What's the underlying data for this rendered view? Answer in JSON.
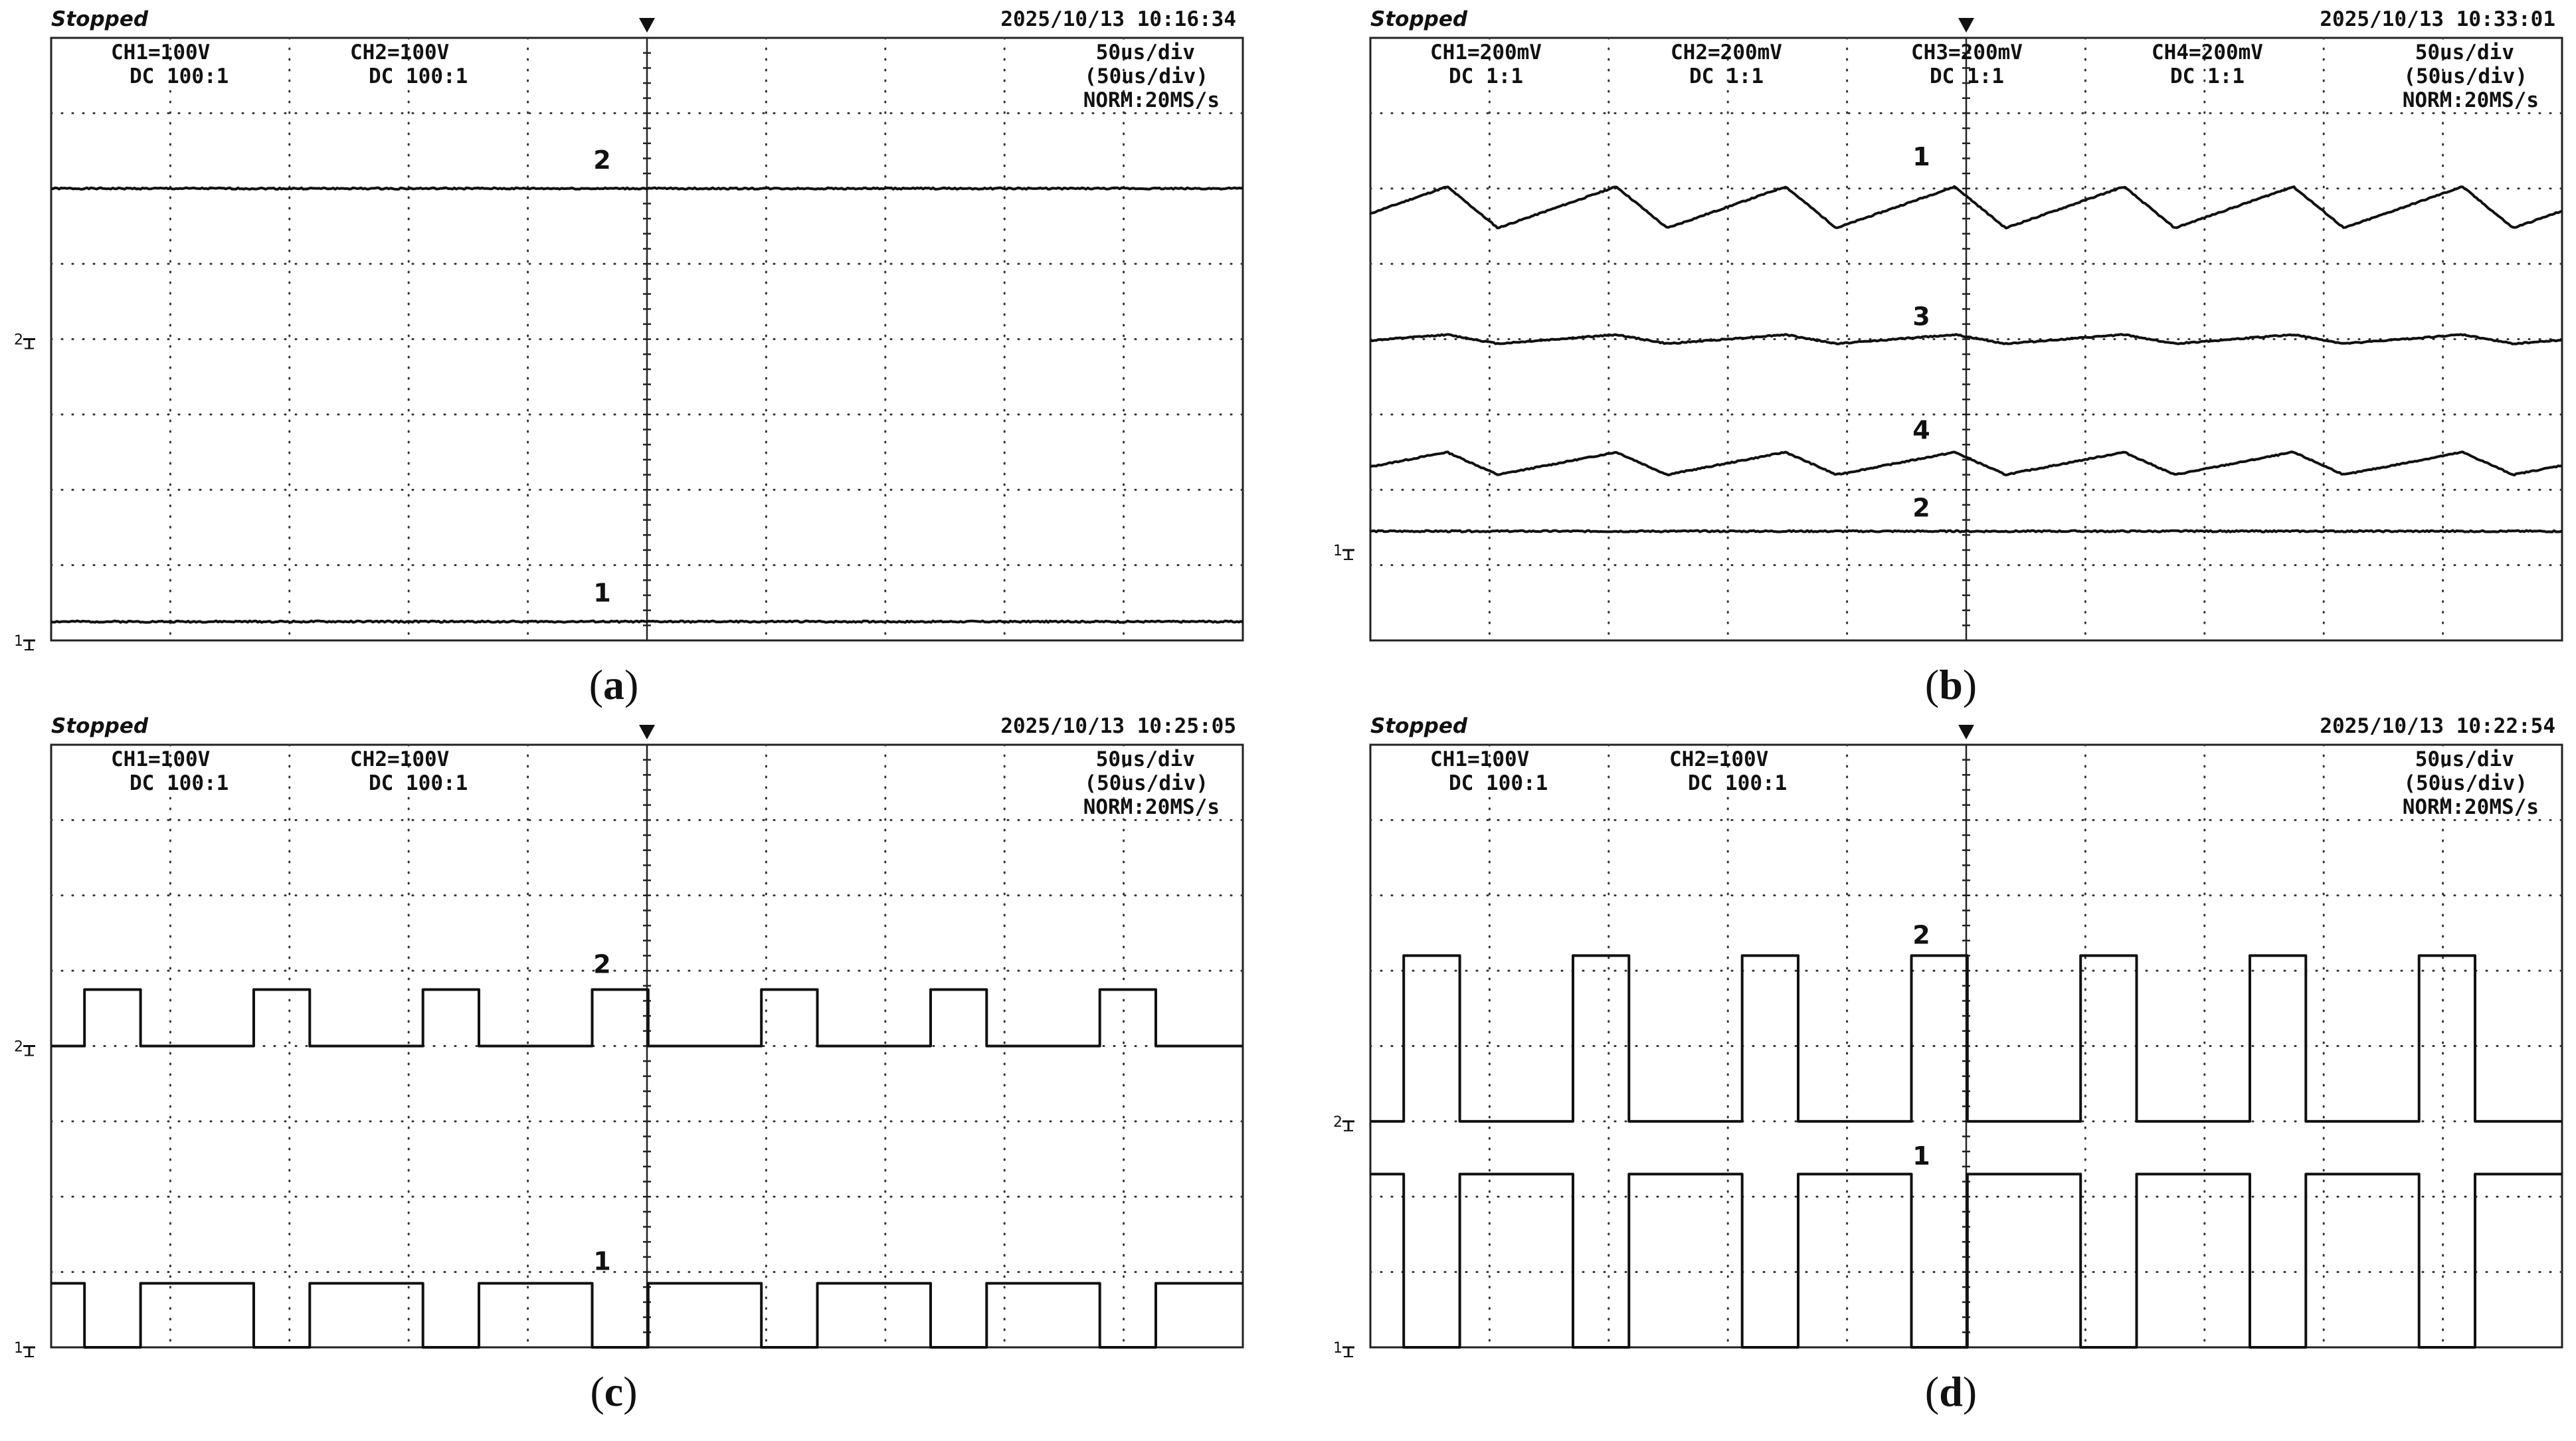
{
  "figure": {
    "panels": [
      {
        "label": "a",
        "header": {
          "status": "Stopped",
          "datetime": "2025/10/13  10:16:34",
          "channels": [
            {
              "setting": "CH1=100V",
              "coupling": "DC  100:1"
            },
            {
              "setting": "CH2=100V",
              "coupling": "DC  100:1"
            }
          ],
          "timebase": "50us/div",
          "timebase2": "(50us/div)",
          "acquisition": "NORM:20MS/s"
        }
      },
      {
        "label": "b",
        "header": {
          "status": "Stopped",
          "datetime": "2025/10/13  10:33:01",
          "channels": [
            {
              "setting": "CH1=200mV",
              "coupling": "DC  1:1"
            },
            {
              "setting": "CH2=200mV",
              "coupling": "DC  1:1"
            },
            {
              "setting": "CH3=200mV",
              "coupling": "DC  1:1"
            },
            {
              "setting": "CH4=200mV",
              "coupling": "DC  1:1"
            }
          ],
          "timebase": "50us/div",
          "timebase2": "(50us/div)",
          "acquisition": "NORM:20MS/s"
        }
      },
      {
        "label": "c",
        "header": {
          "status": "Stopped",
          "datetime": "2025/10/13  10:25:05",
          "channels": [
            {
              "setting": "CH1=100V",
              "coupling": "DC  100:1"
            },
            {
              "setting": "CH2=100V",
              "coupling": "DC  100:1"
            }
          ],
          "timebase": "50us/div",
          "timebase2": "(50us/div)",
          "acquisition": "NORM:20MS/s"
        }
      },
      {
        "label": "d",
        "header": {
          "status": "Stopped",
          "datetime": "2025/10/13  10:22:54",
          "channels": [
            {
              "setting": "CH1=100V",
              "coupling": "DC  100:1"
            },
            {
              "setting": "CH2=100V",
              "coupling": "DC  100:1"
            }
          ],
          "timebase": "50us/div",
          "timebase2": "(50us/div)",
          "acquisition": "NORM:20MS/s"
        }
      }
    ]
  },
  "chart_data": [
    {
      "type": "line",
      "panel": "a",
      "x_unit_per_div": "50us",
      "divisions": {
        "x": 10,
        "y": 8
      },
      "series": [
        {
          "name": "2",
          "shape": "dc",
          "level_div": 6.0
        },
        {
          "name": "1",
          "shape": "dc",
          "level_div": 0.25
        }
      ]
    },
    {
      "type": "line",
      "panel": "b",
      "x_unit_per_div": "50us",
      "divisions": {
        "x": 10,
        "y": 8
      },
      "series": [
        {
          "name": "1",
          "shape": "sawtooth",
          "mean_div": 5.75,
          "ripple_div": 0.55,
          "period_div": 1.42,
          "duty": 0.7
        },
        {
          "name": "3",
          "shape": "sawtooth",
          "mean_div": 4.0,
          "ripple_div": 0.12,
          "period_div": 1.42,
          "duty": 0.7
        },
        {
          "name": "4",
          "shape": "sawtooth",
          "mean_div": 2.35,
          "ripple_div": 0.3,
          "period_div": 1.42,
          "duty": 0.7
        },
        {
          "name": "2",
          "shape": "dc",
          "level_div": 1.45
        }
      ]
    },
    {
      "type": "line",
      "panel": "c",
      "x_unit_per_div": "50us",
      "divisions": {
        "x": 10,
        "y": 8
      },
      "series": [
        {
          "name": "2",
          "shape": "pulse",
          "low_div": 4.0,
          "high_div": 4.75,
          "period_div": 1.42,
          "phase_div": 0.28,
          "width_div": 0.47
        },
        {
          "name": "1",
          "shape": "pulse",
          "low_div": 0.0,
          "high_div": 0.85,
          "period_div": 1.42,
          "phase_div": 0.28,
          "width_div": 0.47,
          "inverted": true
        }
      ]
    },
    {
      "type": "line",
      "panel": "d",
      "x_unit_per_div": "50us",
      "divisions": {
        "x": 10,
        "y": 8
      },
      "series": [
        {
          "name": "2",
          "shape": "pulse",
          "low_div": 3.0,
          "high_div": 5.2,
          "period_div": 1.42,
          "phase_div": 0.28,
          "width_div": 0.47
        },
        {
          "name": "1",
          "shape": "pulse",
          "low_div": 0.0,
          "high_div": 2.3,
          "period_div": 1.42,
          "phase_div": 0.28,
          "width_div": 0.47,
          "inverted": true
        }
      ]
    }
  ]
}
